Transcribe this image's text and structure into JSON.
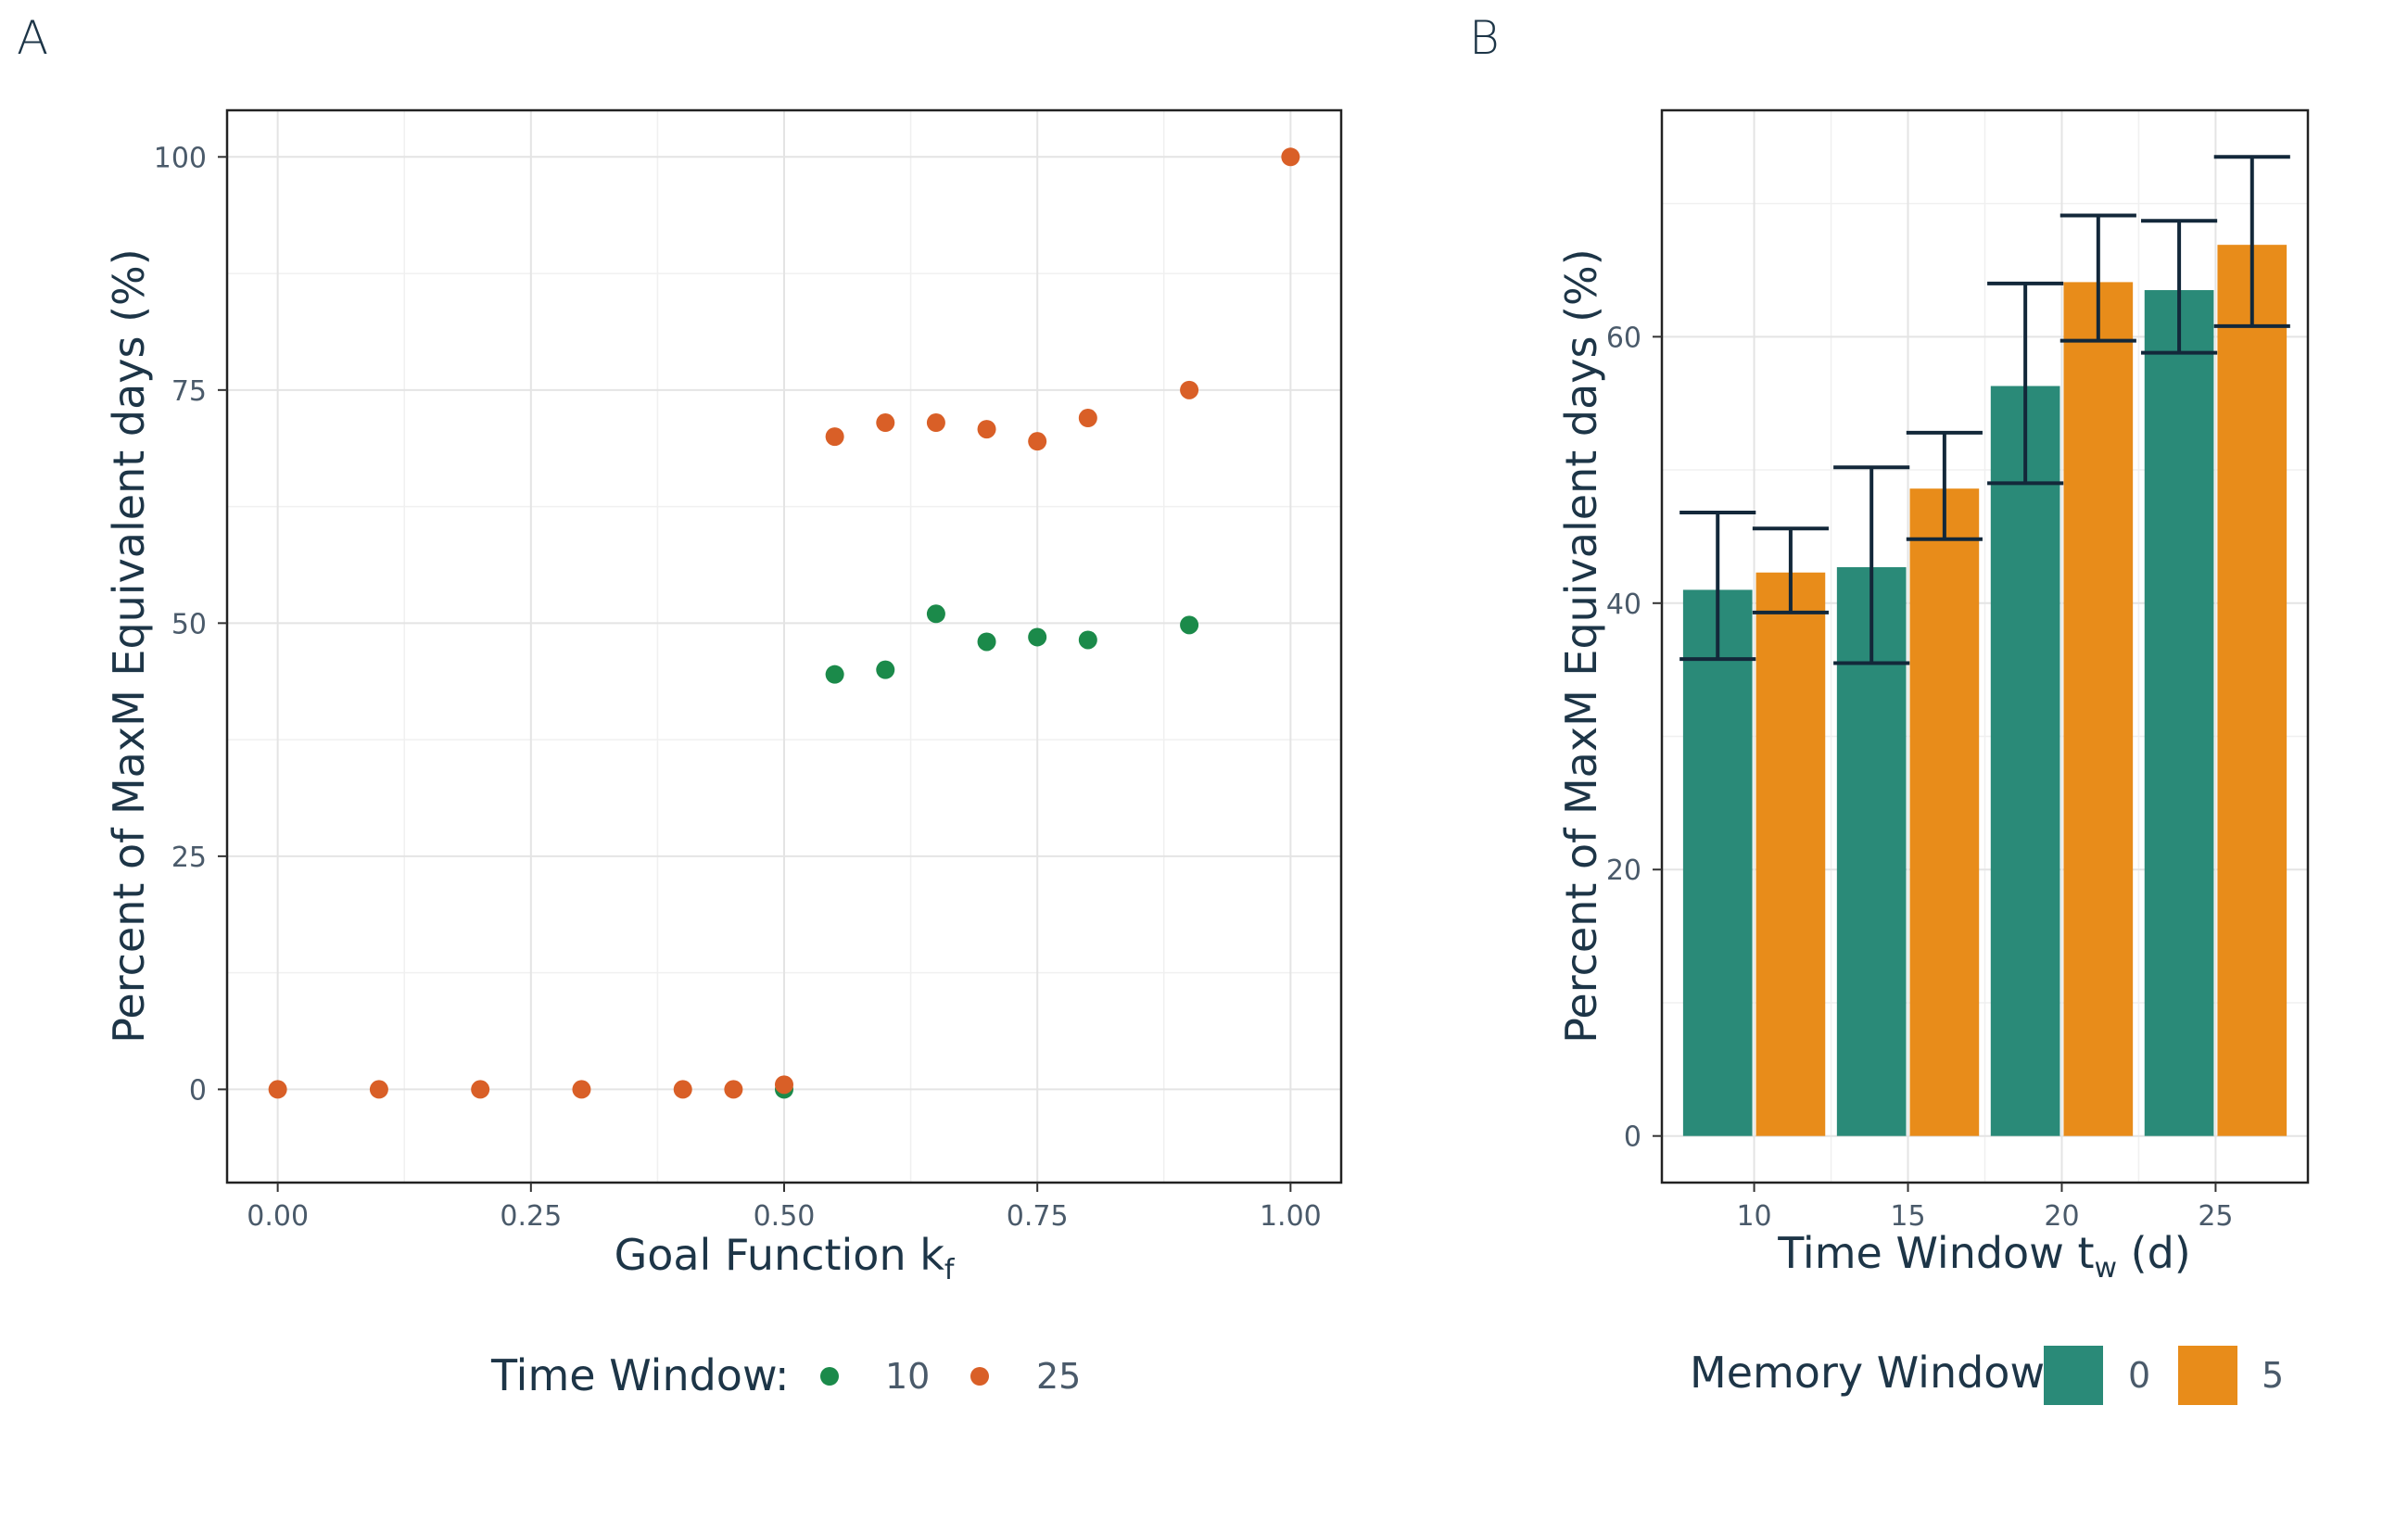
{
  "chart_data": [
    {
      "panel": "A",
      "type": "scatter",
      "xlabel": "Goal Function k",
      "xlabel_sub": "f",
      "ylabel": "Percent of MaxM Equivalent days (%)",
      "xlim": [
        -0.05,
        1.05
      ],
      "ylim": [
        -10,
        105
      ],
      "xticks": [
        0,
        0.25,
        0.5,
        0.75,
        1.0
      ],
      "xtick_labels": [
        "0.00",
        "0.25",
        "0.50",
        "0.75",
        "1.00"
      ],
      "yticks": [
        0,
        25,
        50,
        75,
        100
      ],
      "ytick_labels": [
        "0",
        "25",
        "50",
        "75",
        "100"
      ],
      "grid": true,
      "legend_title": "Time Window:",
      "legend_position": "bottom",
      "series": [
        {
          "name": "10",
          "color": "#1b8a4a",
          "x": [
            0.5,
            0.55,
            0.6,
            0.65,
            0.7,
            0.75,
            0.8,
            0.9
          ],
          "y": [
            0,
            44.5,
            45,
            51,
            48,
            48.5,
            48.2,
            49.8
          ]
        },
        {
          "name": "25",
          "color": "#d95f27",
          "x": [
            0,
            0.1,
            0.2,
            0.3,
            0.4,
            0.45,
            0.5,
            0.55,
            0.6,
            0.65,
            0.7,
            0.75,
            0.8,
            0.9,
            1.0
          ],
          "y": [
            0,
            0,
            0,
            0,
            0,
            0,
            0.5,
            70,
            71.5,
            71.5,
            70.8,
            69.5,
            72,
            75,
            100
          ]
        }
      ]
    },
    {
      "panel": "B",
      "type": "bar",
      "xlabel": "Time Window t",
      "xlabel_sub": "w",
      "xlabel_suffix": " (d)",
      "ylabel": "Percent of MaxM Equivalent days (%)",
      "categories": [
        "10",
        "15",
        "20",
        "25"
      ],
      "ylim": [
        -3.5,
        77
      ],
      "yticks": [
        0,
        20,
        40,
        60
      ],
      "ytick_labels": [
        "0",
        "20",
        "40",
        "60"
      ],
      "grid": true,
      "legend_title": "Memory Window",
      "legend_position": "bottom",
      "series": [
        {
          "name": "0",
          "color": "#2a8a78",
          "values": [
            41,
            42.7,
            56.3,
            63.5
          ],
          "err_low": [
            35.8,
            35.5,
            49,
            58.8
          ],
          "err_high": [
            46.8,
            50.2,
            64,
            68.7
          ]
        },
        {
          "name": "5",
          "color": "#e88c1a",
          "values": [
            42.3,
            48.6,
            64.1,
            66.9
          ],
          "err_low": [
            39.3,
            44.8,
            59.7,
            60.8
          ],
          "err_high": [
            45.6,
            52.8,
            69.1,
            73.5
          ]
        }
      ],
      "error_bar_color": "#13283a"
    }
  ],
  "panel_labels": [
    "A",
    "B"
  ]
}
